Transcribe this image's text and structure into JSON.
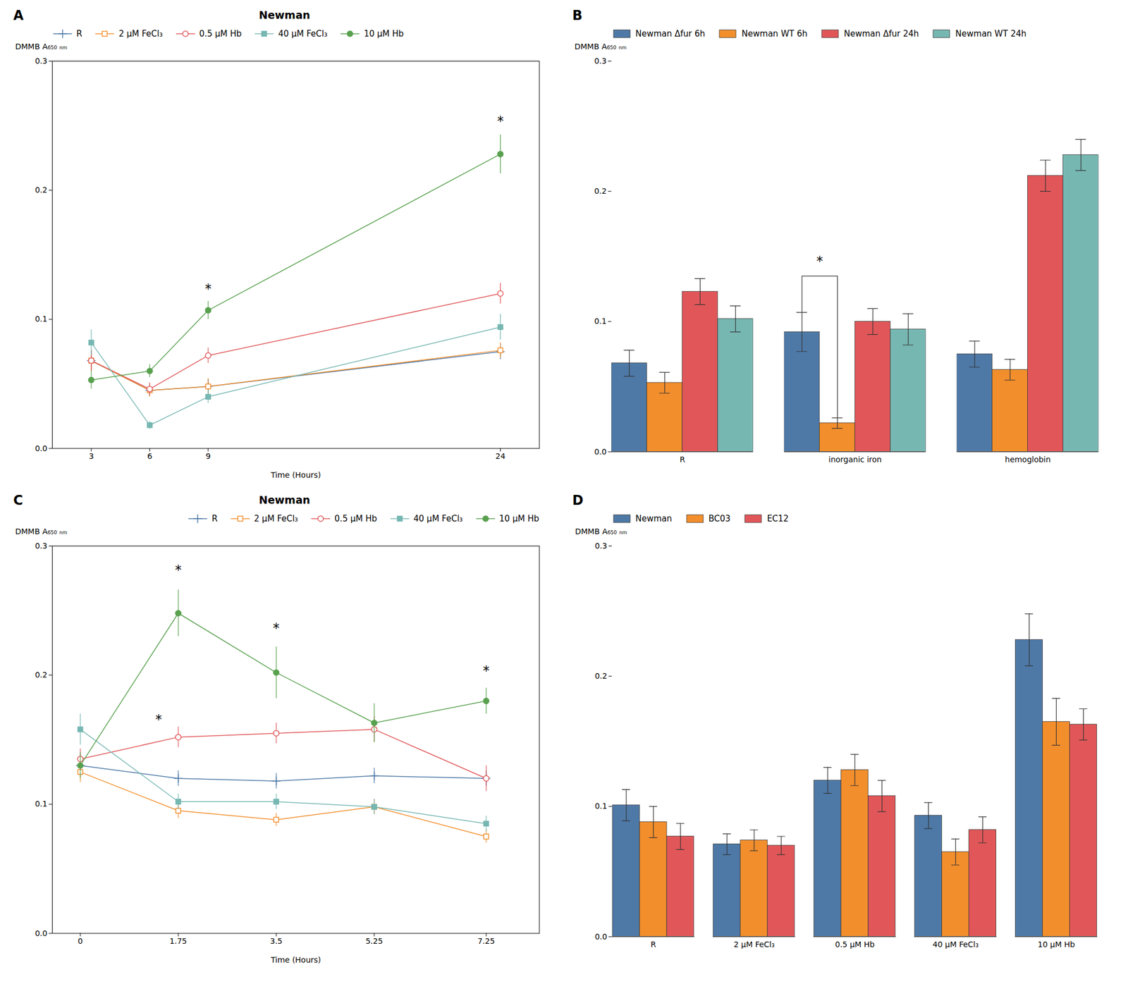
{
  "chart_data": [
    {
      "panel": "A",
      "type": "line",
      "title": "Newman",
      "xlabel": "Time (Hours)",
      "ylabel": "DMMB A₆₅₀ ₙₘ",
      "x": [
        3,
        6,
        9,
        24
      ],
      "xlim": [
        1,
        26
      ],
      "xticks": [
        3,
        6,
        9,
        24
      ],
      "ylim": [
        0,
        0.3
      ],
      "yticks": [
        {
          "value": 0,
          "label": "0.0"
        },
        0.1,
        0.2,
        0.3
      ],
      "legend": "upper left",
      "series": [
        {
          "name": "R",
          "marker": "plus",
          "values": [
            0.068,
            0.045,
            0.048,
            0.075
          ],
          "errors": [
            0.008,
            0.005,
            0.006,
            0.006
          ]
        },
        {
          "name": "2 μM FeCl₃",
          "marker": "square-open",
          "values": [
            0.068,
            0.045,
            0.048,
            0.076
          ],
          "errors": [
            0.008,
            0.005,
            0.006,
            0.006
          ]
        },
        {
          "name": "0.5 μM Hb",
          "marker": "circle-open",
          "values": [
            0.068,
            0.046,
            0.072,
            0.12
          ],
          "errors": [
            0.008,
            0.005,
            0.006,
            0.008
          ]
        },
        {
          "name": "40 μM FeCl₃",
          "marker": "square",
          "values": [
            0.082,
            0.018,
            0.04,
            0.094
          ],
          "errors": [
            0.01,
            0.003,
            0.005,
            0.01
          ]
        },
        {
          "name": "10 μM Hb",
          "marker": "circle",
          "values": [
            0.053,
            0.06,
            0.107,
            0.228
          ],
          "errors": [
            0.007,
            0.005,
            0.007,
            0.015
          ]
        }
      ],
      "annotations": [
        {
          "text": "*",
          "x": 9,
          "y": 0.12
        },
        {
          "text": "*",
          "x": 24,
          "y": 0.25
        }
      ]
    },
    {
      "panel": "B",
      "type": "bar",
      "ylabel": "DMMB A₆₅₀ ₙₘ",
      "categories": [
        "R",
        "inorganic iron",
        "hemoglobin"
      ],
      "ylim": [
        0,
        0.3
      ],
      "yticks": [
        {
          "value": 0,
          "label": "0.0"
        },
        0.1,
        0.2,
        0.3
      ],
      "legend": "upper left",
      "series": [
        {
          "name": "Newman Δfur 6h",
          "values": [
            0.068,
            0.092,
            0.075
          ],
          "errors": [
            0.01,
            0.015,
            0.01
          ]
        },
        {
          "name": "Newman WT 6h",
          "values": [
            0.053,
            0.022,
            0.063
          ],
          "errors": [
            0.008,
            0.004,
            0.008
          ]
        },
        {
          "name": "Newman Δfur 24h",
          "values": [
            0.123,
            0.1,
            0.212
          ],
          "errors": [
            0.01,
            0.01,
            0.012
          ]
        },
        {
          "name": "Newman WT 24h",
          "values": [
            0.102,
            0.094,
            0.228
          ],
          "errors": [
            0.01,
            0.012,
            0.012
          ]
        }
      ],
      "annotations": [
        {
          "text": "*",
          "x": "inorganic iron",
          "series": [
            "Newman Δfur 6h",
            "Newman WT 6h"
          ],
          "bracket": 0.135,
          "y": 0.143
        }
      ]
    },
    {
      "panel": "C",
      "type": "line",
      "title": "Newman",
      "xlabel": "Time (Hours)",
      "ylabel": "DMMB A₆₅₀ ₙₘ",
      "x": [
        0,
        1.75,
        3.5,
        5.25,
        7.25
      ],
      "xlim": [
        -0.5,
        8.2
      ],
      "xticks": [
        0,
        1.75,
        3.5,
        5.25,
        7.25
      ],
      "ylim": [
        0,
        0.3
      ],
      "yticks": [
        {
          "value": 0,
          "label": "0.0"
        },
        0.1,
        0.2,
        0.3
      ],
      "legend": "upper right",
      "series": [
        {
          "name": "R",
          "marker": "plus",
          "values": [
            0.13,
            0.12,
            0.118,
            0.122,
            0.12
          ],
          "errors": [
            0.008,
            0.006,
            0.006,
            0.006,
            0.006
          ]
        },
        {
          "name": "2 μM FeCl₃",
          "marker": "square-open",
          "values": [
            0.125,
            0.095,
            0.088,
            0.098,
            0.075
          ],
          "errors": [
            0.008,
            0.006,
            0.005,
            0.006,
            0.005
          ]
        },
        {
          "name": "0.5 μM Hb",
          "marker": "circle-open",
          "values": [
            0.135,
            0.152,
            0.155,
            0.158,
            0.12
          ],
          "errors": [
            0.008,
            0.008,
            0.008,
            0.01,
            0.01
          ]
        },
        {
          "name": "40 μM FeCl₃",
          "marker": "square",
          "values": [
            0.158,
            0.102,
            0.102,
            0.098,
            0.085
          ],
          "errors": [
            0.012,
            0.006,
            0.006,
            0.006,
            0.006
          ]
        },
        {
          "name": "10 μM Hb",
          "marker": "circle",
          "values": [
            0.13,
            0.248,
            0.202,
            0.163,
            0.18
          ],
          "errors": [
            0.01,
            0.018,
            0.02,
            0.015,
            0.01
          ]
        }
      ],
      "annotations": [
        {
          "text": "*",
          "x": 1.75,
          "y": 0.278
        },
        {
          "text": "*",
          "x": 1.4,
          "y": 0.162
        },
        {
          "text": "*",
          "x": 3.5,
          "y": 0.233
        },
        {
          "text": "*",
          "x": 7.25,
          "y": 0.2
        }
      ]
    },
    {
      "panel": "D",
      "type": "bar",
      "ylabel": "DMMB A₆₅₀ ₙₘ",
      "categories": [
        "R",
        "2 μM FeCl₃",
        "0.5 μM Hb",
        "40 μM FeCl₃",
        "10 μM Hb"
      ],
      "ylim": [
        0,
        0.3
      ],
      "yticks": [
        {
          "value": 0,
          "label": "0.0"
        },
        0.1,
        0.2,
        0.3
      ],
      "legend": "upper left",
      "series": [
        {
          "name": "Newman",
          "values": [
            0.101,
            0.071,
            0.12,
            0.093,
            0.228
          ],
          "errors": [
            0.012,
            0.008,
            0.01,
            0.01,
            0.02
          ]
        },
        {
          "name": "BC03",
          "values": [
            0.088,
            0.074,
            0.128,
            0.065,
            0.165
          ],
          "errors": [
            0.012,
            0.008,
            0.012,
            0.01,
            0.018
          ]
        },
        {
          "name": "EC12",
          "values": [
            0.077,
            0.07,
            0.108,
            0.082,
            0.163
          ],
          "errors": [
            0.01,
            0.007,
            0.012,
            0.01,
            0.012
          ]
        }
      ]
    }
  ]
}
